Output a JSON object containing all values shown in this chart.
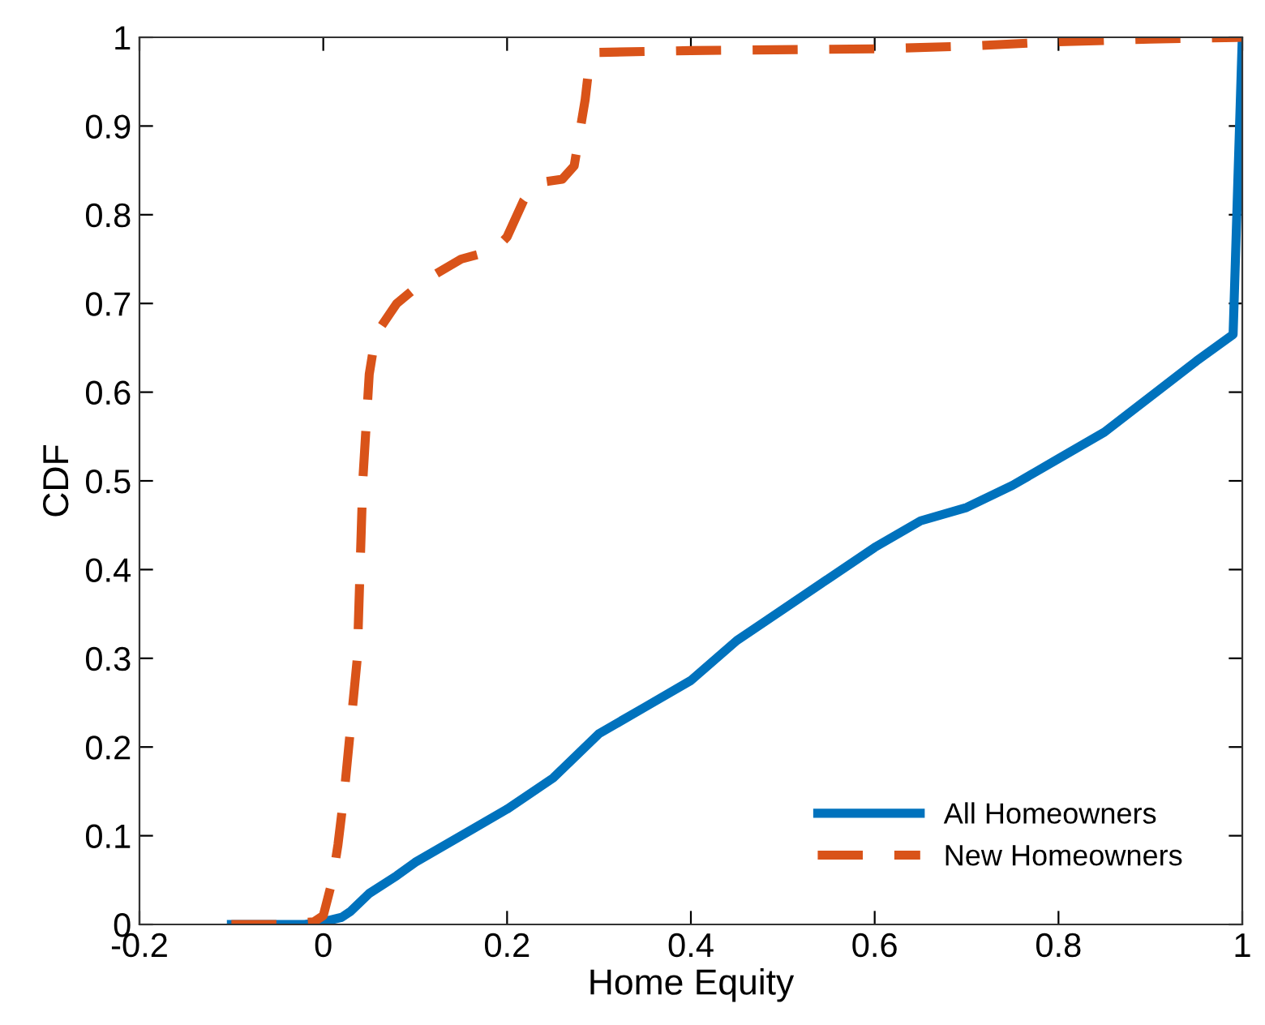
{
  "chart_data": {
    "type": "line",
    "xlabel": "Home Equity",
    "ylabel": "CDF",
    "xlim": [
      -0.2,
      1
    ],
    "ylim": [
      0,
      1
    ],
    "xticks": [
      {
        "value": -0.2,
        "label": "-0.2"
      },
      0,
      0.2,
      0.4,
      0.6,
      0.8,
      1
    ],
    "yticks": [
      0,
      0.1,
      0.2,
      0.3,
      0.4,
      0.5,
      0.6,
      0.7,
      0.8,
      0.9,
      1
    ],
    "grid": false,
    "legend": "bottom right",
    "series": [
      {
        "name": "All Homeowners",
        "color": "#0072bd",
        "line_style": "solid",
        "x": [
          -0.1,
          -0.02,
          0.0,
          0.02,
          0.03,
          0.05,
          0.08,
          0.1,
          0.15,
          0.2,
          0.25,
          0.3,
          0.35,
          0.4,
          0.45,
          0.5,
          0.55,
          0.6,
          0.65,
          0.7,
          0.75,
          0.8,
          0.85,
          0.9,
          0.95,
          0.99,
          1.0
        ],
        "values": [
          0,
          0,
          0.003,
          0.008,
          0.015,
          0.035,
          0.055,
          0.07,
          0.1,
          0.13,
          0.165,
          0.215,
          0.245,
          0.275,
          0.32,
          0.355,
          0.39,
          0.425,
          0.455,
          0.47,
          0.495,
          0.525,
          0.555,
          0.595,
          0.635,
          0.665,
          1.0
        ]
      },
      {
        "name": "New Homeowners",
        "color": "#d95319",
        "line_style": "dashed",
        "x": [
          -0.1,
          -0.05,
          -0.01,
          0.0,
          0.01,
          0.016,
          0.023,
          0.037,
          0.043,
          0.05,
          0.057,
          0.08,
          0.109,
          0.15,
          0.186,
          0.2,
          0.218,
          0.233,
          0.26,
          0.273,
          0.285,
          0.29,
          0.3,
          0.4,
          0.6,
          0.7,
          0.8,
          0.9,
          1.0
        ],
        "values": [
          0,
          0,
          0.003,
          0.01,
          0.05,
          0.09,
          0.15,
          0.3,
          0.5,
          0.62,
          0.665,
          0.7,
          0.725,
          0.75,
          0.76,
          0.775,
          0.816,
          0.836,
          0.84,
          0.855,
          0.93,
          0.975,
          0.983,
          0.985,
          0.987,
          0.99,
          0.995,
          0.998,
          1.0
        ]
      }
    ]
  }
}
